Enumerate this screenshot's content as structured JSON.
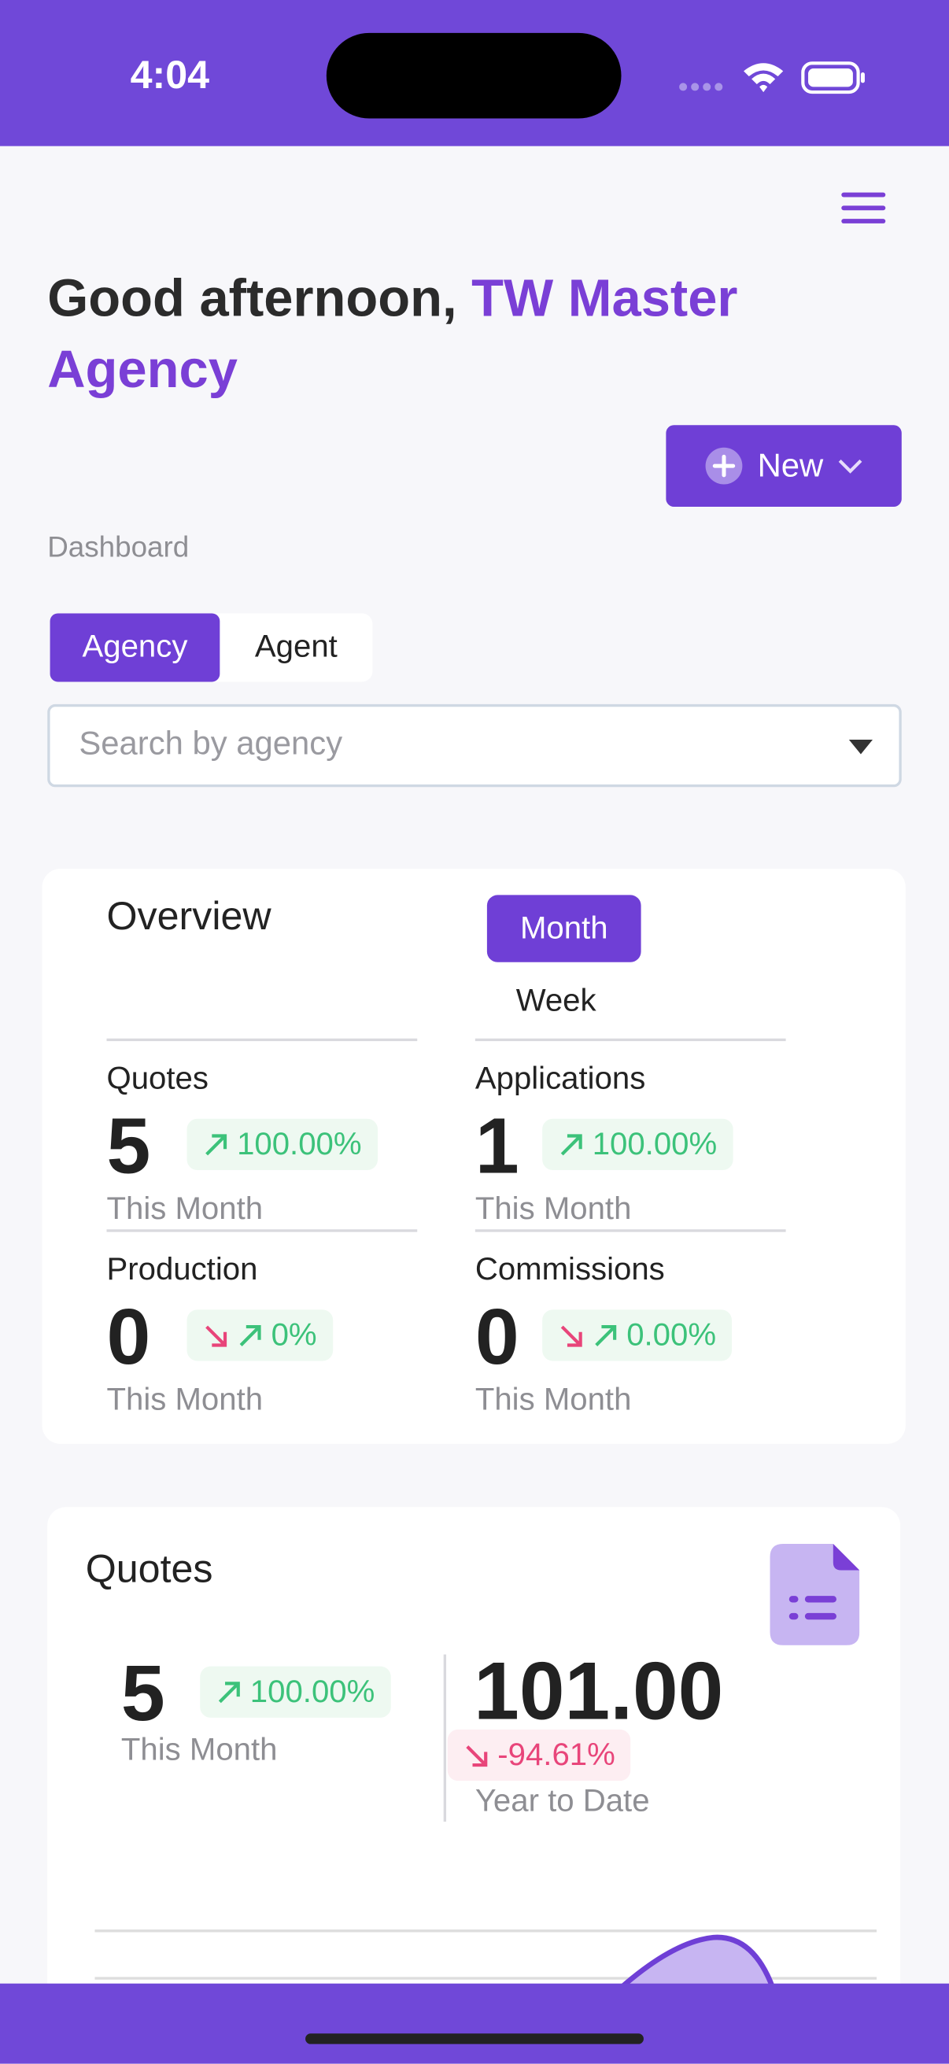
{
  "status_bar": {
    "time": "4:04"
  },
  "header": {
    "greeting": "Good afternoon,",
    "name": "TW Master Agency",
    "new_button": "New",
    "section": "Dashboard"
  },
  "tabs": [
    "Agency",
    "Agent"
  ],
  "search": {
    "placeholder": "Search by agency"
  },
  "overview": {
    "title": "Overview",
    "periods": [
      "Month",
      "Week"
    ],
    "stats": [
      {
        "label": "Quotes",
        "value": "5",
        "change": "100.00%",
        "period": "This Month"
      },
      {
        "label": "Applications",
        "value": "1",
        "change": "100.00%",
        "period": "This Month"
      },
      {
        "label": "Production",
        "value": "0",
        "change": "0%",
        "period": "This Month"
      },
      {
        "label": "Commissions",
        "value": "0",
        "change": "0.00%",
        "period": "This Month"
      }
    ]
  },
  "quotes_card": {
    "title": "Quotes",
    "month_value": "5",
    "month_change": "100.00%",
    "month_period": "This Month",
    "ytd_value": "101.00",
    "ytd_change": "-94.61%",
    "ytd_period": "Year to Date"
  }
}
